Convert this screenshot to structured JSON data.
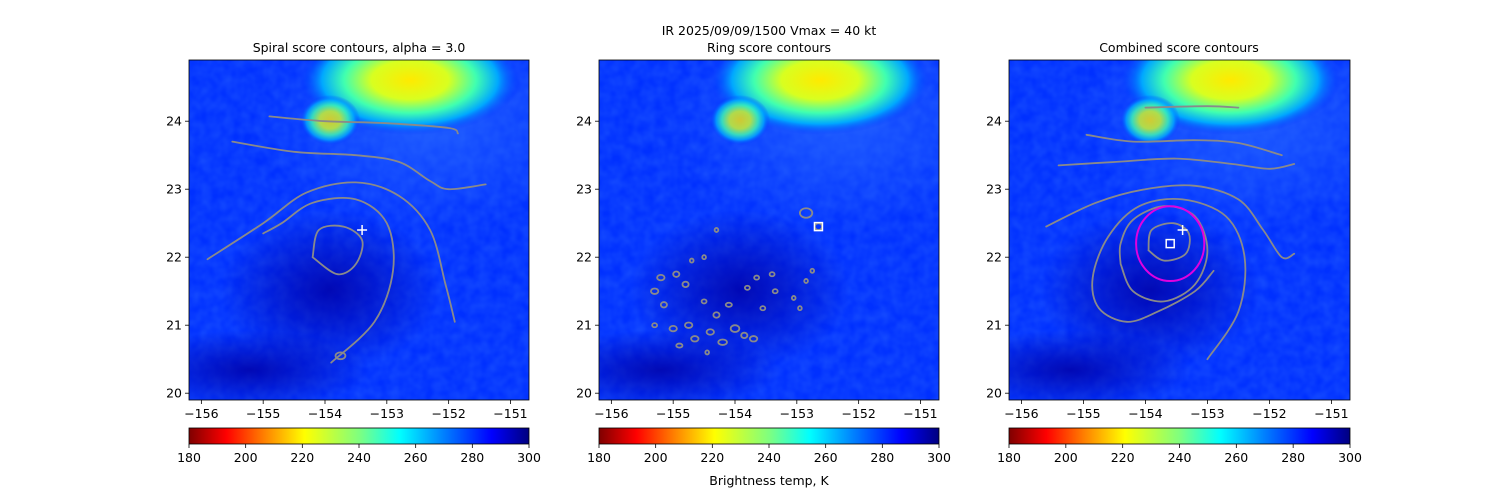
{
  "figure": {
    "suptitle_line1": "IR  2025/09/09/1500    Vmax = 40 kt",
    "colorbar_label": "Brightness temp, K",
    "colormap": "jet_reversed",
    "cmap_colors": [
      "#7f0000",
      "#ff0000",
      "#ff7f00",
      "#ffff00",
      "#7fff7f",
      "#00ffff",
      "#007fff",
      "#0000ff",
      "#00007f"
    ],
    "contour_color": "#8a8a8a",
    "ring_color": "#e000e0",
    "marker_color": "#ffffff"
  },
  "chart_data": [
    {
      "type": "contour",
      "title": "Spiral score contours, alpha =  3.0",
      "xlim": [
        -156.2,
        -150.7
      ],
      "ylim": [
        19.9,
        24.9
      ],
      "xticks": [
        -156,
        -155,
        -154,
        -153,
        -152,
        -151
      ],
      "yticks": [
        20,
        21,
        22,
        23,
        24
      ],
      "colorbar": {
        "min": 180,
        "max": 300,
        "ticks": [
          180,
          200,
          220,
          240,
          260,
          280,
          300
        ],
        "label": ""
      },
      "markers": [
        {
          "shape": "plus",
          "lon": -153.4,
          "lat": 22.4
        }
      ],
      "contours": [
        {
          "type": "path",
          "points": [
            [
              -154.9,
              24.07
            ],
            [
              -154.0,
              24.0
            ],
            [
              -153.0,
              23.97
            ],
            [
              -152.0,
              23.9
            ],
            [
              -151.85,
              23.82
            ]
          ]
        },
        {
          "type": "path",
          "points": [
            [
              -155.5,
              23.7
            ],
            [
              -154.5,
              23.55
            ],
            [
              -153.5,
              23.5
            ],
            [
              -152.8,
              23.4
            ],
            [
              -152.3,
              23.12
            ],
            [
              -152.0,
              23.0
            ],
            [
              -151.4,
              23.07
            ]
          ]
        },
        {
          "type": "path",
          "points": [
            [
              -155.9,
              21.97
            ],
            [
              -155.0,
              22.5
            ],
            [
              -154.3,
              22.95
            ],
            [
              -153.5,
              23.1
            ],
            [
              -152.8,
              22.9
            ],
            [
              -152.3,
              22.4
            ],
            [
              -152.05,
              21.6
            ],
            [
              -151.9,
              21.05
            ]
          ]
        },
        {
          "type": "path",
          "points": [
            [
              -153.9,
              20.45
            ],
            [
              -153.2,
              21.05
            ],
            [
              -152.9,
              21.8
            ],
            [
              -153.0,
              22.5
            ],
            [
              -153.5,
              22.85
            ],
            [
              -154.2,
              22.8
            ],
            [
              -154.7,
              22.5
            ],
            [
              -155.0,
              22.35
            ]
          ]
        },
        {
          "type": "path",
          "points": [
            [
              -154.2,
              22.0
            ],
            [
              -153.8,
              21.75
            ],
            [
              -153.5,
              21.9
            ],
            [
              -153.4,
              22.25
            ],
            [
              -153.7,
              22.45
            ],
            [
              -154.1,
              22.4
            ],
            [
              -154.2,
              22.0
            ]
          ]
        },
        {
          "type": "blob",
          "lon": -153.75,
          "lat": 20.55,
          "rx": 0.08,
          "ry": 0.05
        }
      ]
    },
    {
      "type": "contour",
      "title": "Ring score contours",
      "xlim": [
        -156.2,
        -150.7
      ],
      "ylim": [
        19.9,
        24.9
      ],
      "xticks": [
        -156,
        -155,
        -154,
        -153,
        -152,
        -151
      ],
      "yticks": [
        20,
        21,
        22,
        23,
        24
      ],
      "colorbar": {
        "min": 180,
        "max": 300,
        "ticks": [
          180,
          200,
          220,
          240,
          260,
          280,
          300
        ],
        "label": "Brightness temp, K"
      },
      "markers": [
        {
          "shape": "square",
          "lon": -152.65,
          "lat": 22.45
        }
      ],
      "contours": [
        {
          "type": "blob",
          "lon": -152.85,
          "lat": 22.65,
          "rx": 0.1,
          "ry": 0.07
        },
        {
          "type": "blob",
          "lon": -152.65,
          "lat": 22.45,
          "rx": 0.06,
          "ry": 0.05
        },
        {
          "type": "blob",
          "lon": -155.2,
          "lat": 21.7,
          "rx": 0.06,
          "ry": 0.04
        },
        {
          "type": "blob",
          "lon": -155.3,
          "lat": 21.5,
          "rx": 0.06,
          "ry": 0.04
        },
        {
          "type": "blob",
          "lon": -155.15,
          "lat": 21.3,
          "rx": 0.05,
          "ry": 0.04
        },
        {
          "type": "blob",
          "lon": -154.95,
          "lat": 21.75,
          "rx": 0.05,
          "ry": 0.04
        },
        {
          "type": "blob",
          "lon": -154.8,
          "lat": 21.6,
          "rx": 0.05,
          "ry": 0.04
        },
        {
          "type": "blob",
          "lon": -155.0,
          "lat": 20.95,
          "rx": 0.06,
          "ry": 0.04
        },
        {
          "type": "blob",
          "lon": -154.75,
          "lat": 21.0,
          "rx": 0.06,
          "ry": 0.04
        },
        {
          "type": "blob",
          "lon": -154.65,
          "lat": 20.8,
          "rx": 0.06,
          "ry": 0.04
        },
        {
          "type": "blob",
          "lon": -154.4,
          "lat": 20.9,
          "rx": 0.06,
          "ry": 0.04
        },
        {
          "type": "blob",
          "lon": -154.3,
          "lat": 21.15,
          "rx": 0.05,
          "ry": 0.04
        },
        {
          "type": "blob",
          "lon": -154.2,
          "lat": 20.75,
          "rx": 0.07,
          "ry": 0.04
        },
        {
          "type": "blob",
          "lon": -154.0,
          "lat": 20.95,
          "rx": 0.07,
          "ry": 0.05
        },
        {
          "type": "blob",
          "lon": -153.85,
          "lat": 20.85,
          "rx": 0.05,
          "ry": 0.04
        },
        {
          "type": "blob",
          "lon": -153.7,
          "lat": 20.8,
          "rx": 0.06,
          "ry": 0.04
        },
        {
          "type": "blob",
          "lon": -154.5,
          "lat": 21.35,
          "rx": 0.04,
          "ry": 0.03
        },
        {
          "type": "blob",
          "lon": -154.1,
          "lat": 21.3,
          "rx": 0.05,
          "ry": 0.03
        },
        {
          "type": "blob",
          "lon": -153.8,
          "lat": 21.55,
          "rx": 0.04,
          "ry": 0.03
        },
        {
          "type": "blob",
          "lon": -153.55,
          "lat": 21.25,
          "rx": 0.04,
          "ry": 0.03
        },
        {
          "type": "blob",
          "lon": -153.35,
          "lat": 21.5,
          "rx": 0.04,
          "ry": 0.03
        },
        {
          "type": "blob",
          "lon": -153.65,
          "lat": 21.7,
          "rx": 0.04,
          "ry": 0.03
        },
        {
          "type": "blob",
          "lon": -153.4,
          "lat": 21.75,
          "rx": 0.04,
          "ry": 0.03
        },
        {
          "type": "blob",
          "lon": -154.5,
          "lat": 22.0,
          "rx": 0.03,
          "ry": 0.03
        },
        {
          "type": "blob",
          "lon": -154.3,
          "lat": 22.4,
          "rx": 0.03,
          "ry": 0.03
        },
        {
          "type": "blob",
          "lon": -154.7,
          "lat": 21.95,
          "rx": 0.03,
          "ry": 0.03
        },
        {
          "type": "blob",
          "lon": -155.3,
          "lat": 21.0,
          "rx": 0.04,
          "ry": 0.03
        },
        {
          "type": "blob",
          "lon": -154.9,
          "lat": 20.7,
          "rx": 0.05,
          "ry": 0.03
        },
        {
          "type": "blob",
          "lon": -152.95,
          "lat": 21.25,
          "rx": 0.03,
          "ry": 0.03
        },
        {
          "type": "blob",
          "lon": -152.85,
          "lat": 21.65,
          "rx": 0.03,
          "ry": 0.03
        },
        {
          "type": "blob",
          "lon": -152.75,
          "lat": 21.8,
          "rx": 0.03,
          "ry": 0.03
        },
        {
          "type": "blob",
          "lon": -153.05,
          "lat": 21.4,
          "rx": 0.03,
          "ry": 0.03
        },
        {
          "type": "blob",
          "lon": -154.45,
          "lat": 20.6,
          "rx": 0.03,
          "ry": 0.03
        }
      ]
    },
    {
      "type": "contour",
      "title": "Combined score contours",
      "xlim": [
        -156.2,
        -150.7
      ],
      "ylim": [
        19.9,
        24.9
      ],
      "xticks": [
        -156,
        -155,
        -154,
        -153,
        -152,
        -151
      ],
      "yticks": [
        20,
        21,
        22,
        23,
        24
      ],
      "colorbar": {
        "min": 180,
        "max": 300,
        "ticks": [
          180,
          200,
          220,
          240,
          260,
          280,
          300
        ],
        "label": ""
      },
      "markers": [
        {
          "shape": "plus",
          "lon": -153.4,
          "lat": 22.4
        },
        {
          "shape": "square",
          "lon": -153.6,
          "lat": 22.2
        }
      ],
      "ring": {
        "lon": -153.6,
        "lat": 22.2,
        "r_deg": 0.55
      },
      "contours": [
        {
          "type": "path",
          "points": [
            [
              -154.0,
              24.2
            ],
            [
              -153.0,
              24.22
            ],
            [
              -152.5,
              24.2
            ]
          ]
        },
        {
          "type": "path",
          "points": [
            [
              -154.95,
              23.8
            ],
            [
              -154.2,
              23.7
            ],
            [
              -153.2,
              23.72
            ],
            [
              -152.5,
              23.68
            ],
            [
              -151.8,
              23.5
            ]
          ]
        },
        {
          "type": "path",
          "points": [
            [
              -155.4,
              23.35
            ],
            [
              -154.5,
              23.4
            ],
            [
              -153.5,
              23.45
            ],
            [
              -152.6,
              23.37
            ],
            [
              -152.0,
              23.3
            ],
            [
              -151.6,
              23.37
            ]
          ]
        },
        {
          "type": "path",
          "points": [
            [
              -155.6,
              22.45
            ],
            [
              -154.8,
              22.8
            ],
            [
              -154.0,
              23.0
            ],
            [
              -153.2,
              23.05
            ],
            [
              -152.5,
              22.85
            ],
            [
              -152.1,
              22.4
            ],
            [
              -151.8,
              22.0
            ],
            [
              -151.6,
              22.05
            ]
          ]
        },
        {
          "type": "path",
          "points": [
            [
              -153.0,
              20.5
            ],
            [
              -152.5,
              21.2
            ],
            [
              -152.4,
              22.0
            ],
            [
              -152.7,
              22.6
            ],
            [
              -153.4,
              22.85
            ],
            [
              -154.1,
              22.75
            ],
            [
              -154.6,
              22.3
            ],
            [
              -154.85,
              21.7
            ],
            [
              -154.75,
              21.25
            ],
            [
              -154.3,
              21.05
            ],
            [
              -153.8,
              21.2
            ],
            [
              -153.2,
              21.5
            ],
            [
              -152.9,
              21.8
            ]
          ]
        },
        {
          "type": "path",
          "points": [
            [
              -154.4,
              21.9
            ],
            [
              -154.2,
              21.5
            ],
            [
              -153.7,
              21.35
            ],
            [
              -153.2,
              21.6
            ],
            [
              -153.0,
              22.1
            ],
            [
              -153.2,
              22.6
            ],
            [
              -153.7,
              22.75
            ],
            [
              -154.2,
              22.55
            ],
            [
              -154.4,
              22.2
            ],
            [
              -154.4,
              21.9
            ]
          ]
        },
        {
          "type": "path",
          "points": [
            [
              -153.95,
              22.1
            ],
            [
              -153.7,
              21.95
            ],
            [
              -153.35,
              22.05
            ],
            [
              -153.3,
              22.35
            ],
            [
              -153.55,
              22.5
            ],
            [
              -153.9,
              22.4
            ],
            [
              -153.95,
              22.1
            ]
          ]
        }
      ]
    }
  ]
}
